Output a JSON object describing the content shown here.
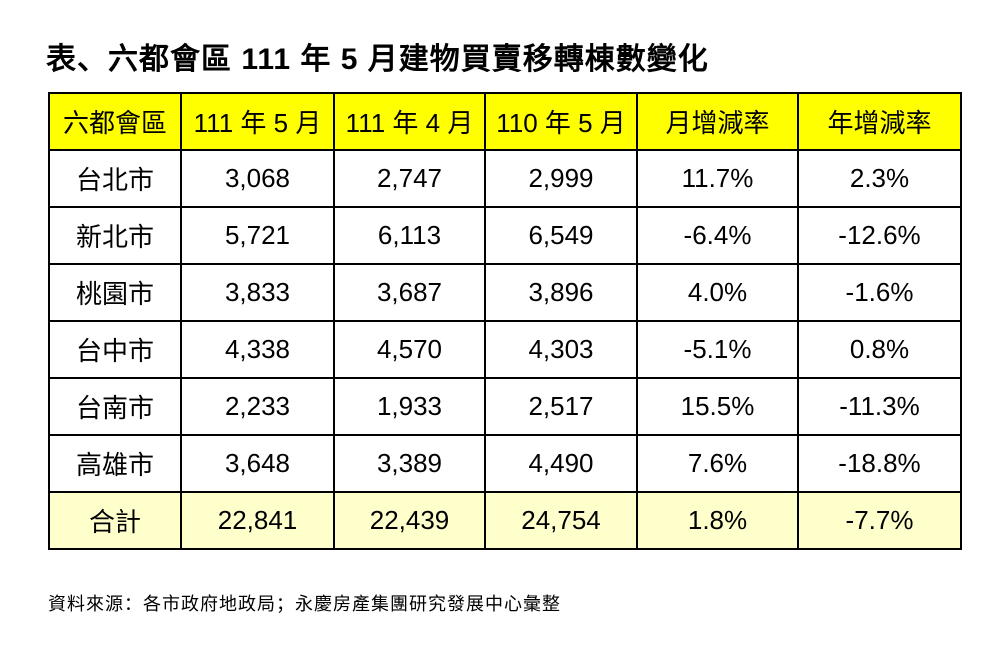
{
  "title": "表、六都會區 111 年 5 月建物買賣移轉棟數變化",
  "table": {
    "header": [
      "六都會區",
      "111 年 5 月",
      "111 年 4 月",
      "110 年 5 月",
      "月增減率",
      "年增減率"
    ],
    "rows": [
      [
        "台北市",
        "3,068",
        "2,747",
        "2,999",
        "11.7%",
        "2.3%"
      ],
      [
        "新北市",
        "5,721",
        "6,113",
        "6,549",
        "-6.4%",
        "-12.6%"
      ],
      [
        "桃園市",
        "3,833",
        "3,687",
        "3,896",
        "4.0%",
        "-1.6%"
      ],
      [
        "台中市",
        "4,338",
        "4,570",
        "4,303",
        "-5.1%",
        "0.8%"
      ],
      [
        "台南市",
        "2,233",
        "1,933",
        "2,517",
        "15.5%",
        "-11.3%"
      ],
      [
        "高雄市",
        "3,648",
        "3,389",
        "4,490",
        "7.6%",
        "-18.8%"
      ]
    ],
    "total": [
      "合計",
      "22,841",
      "22,439",
      "24,754",
      "1.8%",
      "-7.7%"
    ]
  },
  "source": "資料來源：各市政府地政局；永慶房產集團研究發展中心彙整"
}
